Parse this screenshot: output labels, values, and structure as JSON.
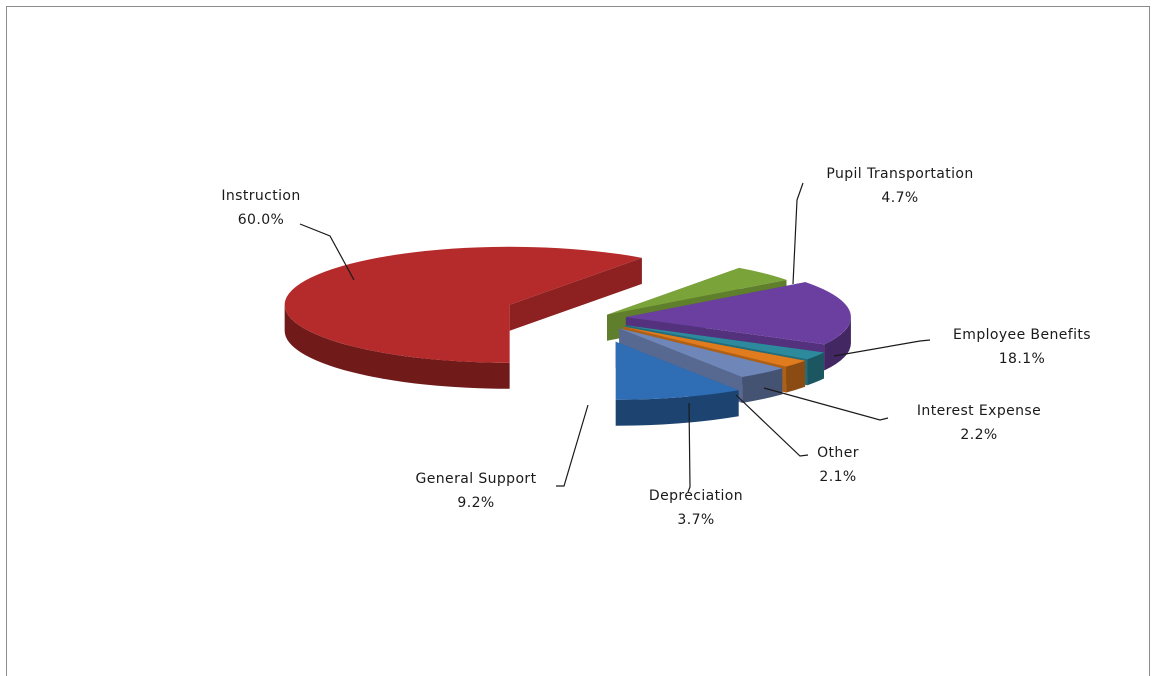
{
  "chart_data": {
    "type": "pie",
    "style": "3D exploded pie",
    "slices": [
      {
        "label": "Instruction",
        "value": 60.0,
        "display": "60.0%",
        "color": "#b52a2a"
      },
      {
        "label": "Pupil Transportation",
        "value": 4.7,
        "display": "4.7%",
        "color": "#7aa33a"
      },
      {
        "label": "Employee Benefits",
        "value": 18.1,
        "display": "18.1%",
        "color": "#6b3fa0"
      },
      {
        "label": "Interest Expense",
        "value": 2.2,
        "display": "2.2%",
        "color": "#2d8a9c"
      },
      {
        "label": "Other",
        "value": 2.1,
        "display": "2.1%",
        "color": "#e07b1e"
      },
      {
        "label": "Depreciation",
        "value": 3.7,
        "display": "3.7%",
        "color": "#6f86b8"
      },
      {
        "label": "General Support",
        "value": 9.2,
        "display": "9.2%",
        "color": "#2f6db5"
      }
    ]
  }
}
